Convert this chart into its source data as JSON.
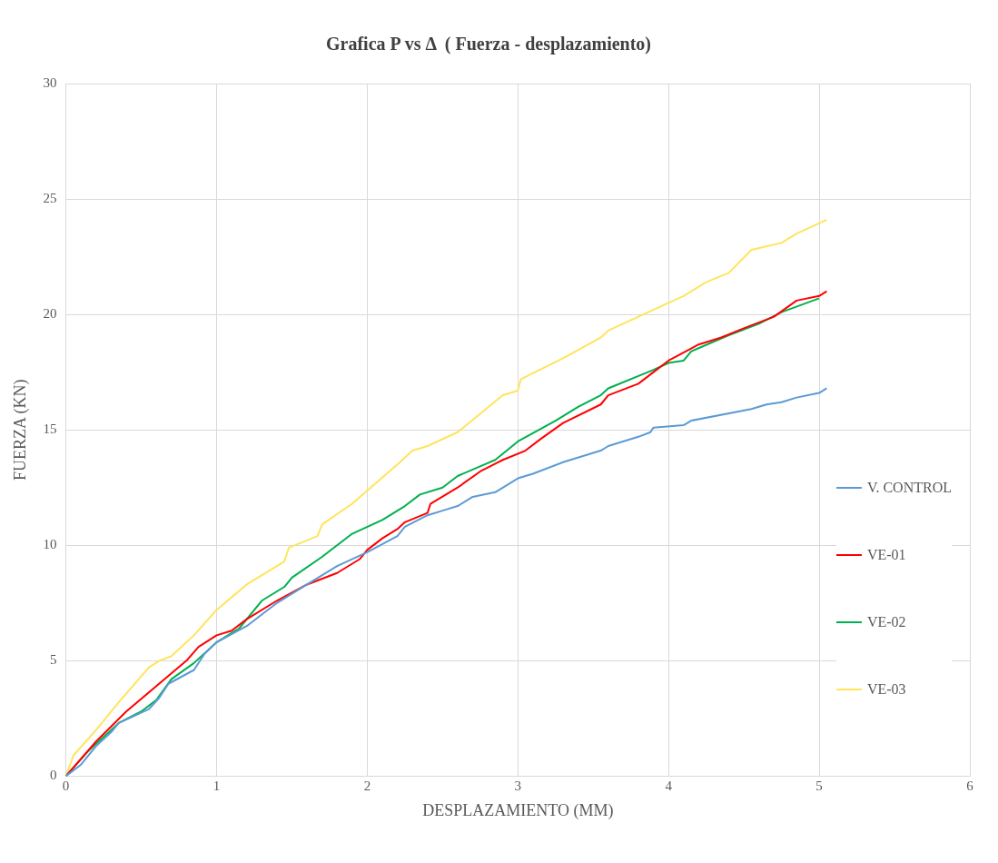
{
  "chart_data": {
    "type": "line",
    "title": "Grafica P vs Δ  ( Fuerza - desplazamiento)",
    "xlabel": "DESPLAZAMIENTO (MM)",
    "ylabel": "FUERZA (KN)",
    "xlim": [
      0,
      6
    ],
    "xticks": [
      0,
      1,
      2,
      3,
      4,
      5,
      6
    ],
    "ylim": [
      0,
      30
    ],
    "yticks": [
      0,
      5,
      10,
      15,
      20,
      25,
      30
    ],
    "grid": true,
    "legend": "right",
    "marker": "none",
    "line_style": "solid",
    "series": [
      {
        "name": "V. CONTROL",
        "color": "#5b9bd5",
        "x": [
          0,
          0.1,
          0.2,
          0.3,
          0.35,
          0.45,
          0.55,
          0.62,
          0.68,
          0.85,
          0.92,
          1.0,
          1.2,
          1.4,
          1.6,
          1.8,
          2.0,
          2.2,
          2.25,
          2.4,
          2.5,
          2.6,
          2.7,
          2.85,
          3.0,
          3.1,
          3.3,
          3.55,
          3.6,
          3.8,
          3.88,
          3.9,
          4.1,
          4.15,
          4.55,
          4.65,
          4.75,
          4.85,
          5.0,
          5.05
        ],
        "values": [
          0,
          0.5,
          1.3,
          1.9,
          2.3,
          2.6,
          2.9,
          3.4,
          4.0,
          4.6,
          5.3,
          5.8,
          6.5,
          7.5,
          8.3,
          9.1,
          9.7,
          10.4,
          10.8,
          11.3,
          11.5,
          11.7,
          12.1,
          12.3,
          12.9,
          13.1,
          13.6,
          14.1,
          14.3,
          14.7,
          14.9,
          15.1,
          15.2,
          15.4,
          15.9,
          16.1,
          16.2,
          16.4,
          16.6,
          16.8
        ]
      },
      {
        "name": "VE-01",
        "color": "#ff0000",
        "x": [
          0,
          0.2,
          0.4,
          0.6,
          0.8,
          0.88,
          1.0,
          1.1,
          1.2,
          1.4,
          1.6,
          1.8,
          1.95,
          2.0,
          2.1,
          2.2,
          2.25,
          2.4,
          2.42,
          2.6,
          2.75,
          2.9,
          3.05,
          3.15,
          3.3,
          3.55,
          3.6,
          3.8,
          3.9,
          4.0,
          4.2,
          4.35,
          4.5,
          4.7,
          4.85,
          5.0,
          5.05
        ],
        "values": [
          0,
          1.5,
          2.8,
          3.9,
          5.0,
          5.6,
          6.1,
          6.3,
          6.8,
          7.6,
          8.3,
          8.8,
          9.4,
          9.8,
          10.3,
          10.7,
          11.0,
          11.4,
          11.8,
          12.5,
          13.2,
          13.7,
          14.1,
          14.6,
          15.3,
          16.1,
          16.5,
          17.0,
          17.5,
          18.0,
          18.7,
          19.0,
          19.4,
          19.9,
          20.6,
          20.8,
          21.0
        ]
      },
      {
        "name": "VE-02",
        "color": "#00b050",
        "x": [
          0,
          0.15,
          0.35,
          0.5,
          0.6,
          0.7,
          0.85,
          1.0,
          1.15,
          1.3,
          1.45,
          1.5,
          1.7,
          1.9,
          2.1,
          2.25,
          2.35,
          2.5,
          2.6,
          2.85,
          3.0,
          3.25,
          3.4,
          3.55,
          3.6,
          3.9,
          4.0,
          4.1,
          4.15,
          4.4,
          4.6,
          4.75,
          5.0
        ],
        "values": [
          0,
          1.1,
          2.3,
          2.8,
          3.3,
          4.2,
          4.9,
          5.8,
          6.4,
          7.6,
          8.2,
          8.6,
          9.5,
          10.5,
          11.1,
          11.7,
          12.2,
          12.5,
          13.0,
          13.7,
          14.5,
          15.4,
          16.0,
          16.5,
          16.8,
          17.6,
          17.9,
          18.0,
          18.4,
          19.1,
          19.6,
          20.1,
          20.7
        ]
      },
      {
        "name": "VE-03",
        "color": "#ffe45c",
        "x": [
          0,
          0.05,
          0.2,
          0.35,
          0.55,
          0.62,
          0.7,
          0.85,
          1.0,
          1.2,
          1.45,
          1.48,
          1.67,
          1.7,
          1.9,
          2.2,
          2.3,
          2.4,
          2.6,
          2.9,
          3.0,
          3.02,
          3.3,
          3.55,
          3.6,
          4.0,
          4.1,
          4.25,
          4.4,
          4.55,
          4.75,
          4.85,
          5.05
        ],
        "values": [
          0,
          0.9,
          2.0,
          3.2,
          4.7,
          5.0,
          5.2,
          6.1,
          7.2,
          8.3,
          9.3,
          9.9,
          10.4,
          10.9,
          11.8,
          13.5,
          14.1,
          14.3,
          14.9,
          16.5,
          16.7,
          17.2,
          18.1,
          19.0,
          19.3,
          20.5,
          20.8,
          21.4,
          21.8,
          22.8,
          23.1,
          23.5,
          24.1
        ]
      }
    ]
  }
}
